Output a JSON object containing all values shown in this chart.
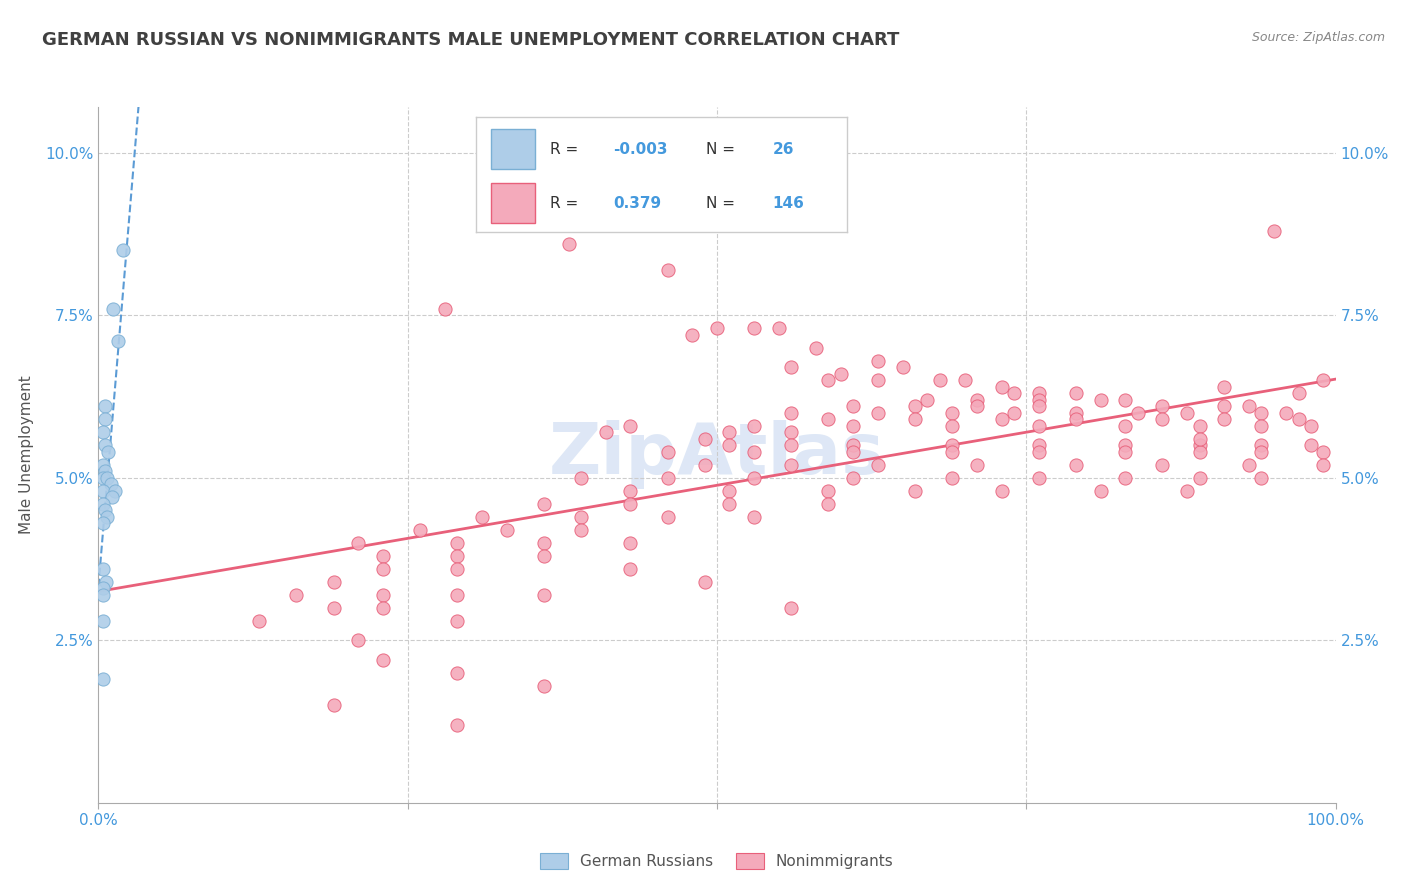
{
  "title": "GERMAN RUSSIAN VS NONIMMIGRANTS MALE UNEMPLOYMENT CORRELATION CHART",
  "source": "Source: ZipAtlas.com",
  "ylabel": "Male Unemployment",
  "xrange": [
    0.0,
    1.0
  ],
  "yrange": [
    0.0,
    0.107
  ],
  "blue_color": "#AECDE8",
  "pink_color": "#F4AABB",
  "blue_edge_color": "#7AAFD4",
  "pink_edge_color": "#E8607A",
  "blue_line_color": "#5B9BD5",
  "pink_line_color": "#E8607A",
  "grid_color": "#CCCCCC",
  "title_color": "#404040",
  "tick_label_color": "#4499DD",
  "watermark_color": "#C8D8F0",
  "background_color": "#FFFFFF",
  "legend_text_black": "#333333",
  "legend_text_blue": "#4499DD",
  "blue_scatter": [
    [
      0.02,
      0.085
    ],
    [
      0.012,
      0.076
    ],
    [
      0.016,
      0.071
    ],
    [
      0.005,
      0.061
    ],
    [
      0.005,
      0.059
    ],
    [
      0.004,
      0.057
    ],
    [
      0.005,
      0.055
    ],
    [
      0.008,
      0.054
    ],
    [
      0.004,
      0.052
    ],
    [
      0.005,
      0.051
    ],
    [
      0.004,
      0.05
    ],
    [
      0.007,
      0.05
    ],
    [
      0.01,
      0.049
    ],
    [
      0.004,
      0.048
    ],
    [
      0.013,
      0.048
    ],
    [
      0.011,
      0.047
    ],
    [
      0.004,
      0.046
    ],
    [
      0.005,
      0.045
    ],
    [
      0.007,
      0.044
    ],
    [
      0.004,
      0.043
    ],
    [
      0.004,
      0.036
    ],
    [
      0.006,
      0.034
    ],
    [
      0.004,
      0.033
    ],
    [
      0.004,
      0.032
    ],
    [
      0.004,
      0.028
    ],
    [
      0.004,
      0.019
    ]
  ],
  "pink_scatter": [
    [
      0.38,
      0.086
    ],
    [
      0.46,
      0.082
    ],
    [
      0.95,
      0.088
    ],
    [
      0.28,
      0.076
    ],
    [
      0.5,
      0.073
    ],
    [
      0.53,
      0.073
    ],
    [
      0.55,
      0.073
    ],
    [
      0.48,
      0.072
    ],
    [
      0.58,
      0.07
    ],
    [
      0.63,
      0.068
    ],
    [
      0.56,
      0.067
    ],
    [
      0.65,
      0.067
    ],
    [
      0.6,
      0.066
    ],
    [
      0.59,
      0.065
    ],
    [
      0.63,
      0.065
    ],
    [
      0.7,
      0.065
    ],
    [
      0.68,
      0.065
    ],
    [
      0.73,
      0.064
    ],
    [
      0.74,
      0.063
    ],
    [
      0.76,
      0.063
    ],
    [
      0.79,
      0.063
    ],
    [
      0.67,
      0.062
    ],
    [
      0.71,
      0.062
    ],
    [
      0.76,
      0.062
    ],
    [
      0.81,
      0.062
    ],
    [
      0.83,
      0.062
    ],
    [
      0.61,
      0.061
    ],
    [
      0.66,
      0.061
    ],
    [
      0.71,
      0.061
    ],
    [
      0.76,
      0.061
    ],
    [
      0.86,
      0.061
    ],
    [
      0.91,
      0.061
    ],
    [
      0.93,
      0.061
    ],
    [
      0.56,
      0.06
    ],
    [
      0.63,
      0.06
    ],
    [
      0.69,
      0.06
    ],
    [
      0.74,
      0.06
    ],
    [
      0.79,
      0.06
    ],
    [
      0.84,
      0.06
    ],
    [
      0.88,
      0.06
    ],
    [
      0.94,
      0.06
    ],
    [
      0.96,
      0.06
    ],
    [
      0.59,
      0.059
    ],
    [
      0.66,
      0.059
    ],
    [
      0.73,
      0.059
    ],
    [
      0.79,
      0.059
    ],
    [
      0.86,
      0.059
    ],
    [
      0.91,
      0.059
    ],
    [
      0.97,
      0.059
    ],
    [
      0.61,
      0.058
    ],
    [
      0.69,
      0.058
    ],
    [
      0.76,
      0.058
    ],
    [
      0.83,
      0.058
    ],
    [
      0.89,
      0.058
    ],
    [
      0.94,
      0.058
    ],
    [
      0.98,
      0.058
    ],
    [
      0.99,
      0.065
    ],
    [
      0.97,
      0.063
    ],
    [
      0.51,
      0.057
    ],
    [
      0.56,
      0.057
    ],
    [
      0.41,
      0.057
    ],
    [
      0.43,
      0.058
    ],
    [
      0.49,
      0.056
    ],
    [
      0.53,
      0.058
    ],
    [
      0.51,
      0.055
    ],
    [
      0.56,
      0.055
    ],
    [
      0.61,
      0.055
    ],
    [
      0.69,
      0.055
    ],
    [
      0.76,
      0.055
    ],
    [
      0.83,
      0.055
    ],
    [
      0.89,
      0.055
    ],
    [
      0.94,
      0.055
    ],
    [
      0.98,
      0.055
    ],
    [
      0.46,
      0.054
    ],
    [
      0.53,
      0.054
    ],
    [
      0.61,
      0.054
    ],
    [
      0.69,
      0.054
    ],
    [
      0.76,
      0.054
    ],
    [
      0.83,
      0.054
    ],
    [
      0.89,
      0.054
    ],
    [
      0.94,
      0.054
    ],
    [
      0.99,
      0.054
    ],
    [
      0.49,
      0.052
    ],
    [
      0.56,
      0.052
    ],
    [
      0.63,
      0.052
    ],
    [
      0.71,
      0.052
    ],
    [
      0.79,
      0.052
    ],
    [
      0.86,
      0.052
    ],
    [
      0.93,
      0.052
    ],
    [
      0.99,
      0.052
    ],
    [
      0.46,
      0.05
    ],
    [
      0.53,
      0.05
    ],
    [
      0.61,
      0.05
    ],
    [
      0.69,
      0.05
    ],
    [
      0.76,
      0.05
    ],
    [
      0.83,
      0.05
    ],
    [
      0.89,
      0.05
    ],
    [
      0.94,
      0.05
    ],
    [
      0.43,
      0.048
    ],
    [
      0.51,
      0.048
    ],
    [
      0.59,
      0.048
    ],
    [
      0.66,
      0.048
    ],
    [
      0.73,
      0.048
    ],
    [
      0.81,
      0.048
    ],
    [
      0.88,
      0.048
    ],
    [
      0.36,
      0.046
    ],
    [
      0.43,
      0.046
    ],
    [
      0.51,
      0.046
    ],
    [
      0.59,
      0.046
    ],
    [
      0.39,
      0.044
    ],
    [
      0.46,
      0.044
    ],
    [
      0.53,
      0.044
    ],
    [
      0.33,
      0.042
    ],
    [
      0.39,
      0.042
    ],
    [
      0.29,
      0.04
    ],
    [
      0.36,
      0.04
    ],
    [
      0.43,
      0.04
    ],
    [
      0.23,
      0.038
    ],
    [
      0.29,
      0.038
    ],
    [
      0.36,
      0.038
    ],
    [
      0.23,
      0.036
    ],
    [
      0.29,
      0.036
    ],
    [
      0.19,
      0.034
    ],
    [
      0.23,
      0.032
    ],
    [
      0.29,
      0.032
    ],
    [
      0.36,
      0.032
    ],
    [
      0.19,
      0.03
    ],
    [
      0.23,
      0.03
    ],
    [
      0.29,
      0.028
    ],
    [
      0.21,
      0.025
    ],
    [
      0.23,
      0.022
    ],
    [
      0.29,
      0.02
    ],
    [
      0.36,
      0.018
    ],
    [
      0.19,
      0.015
    ],
    [
      0.29,
      0.012
    ],
    [
      0.91,
      0.064
    ],
    [
      0.89,
      0.056
    ],
    [
      0.39,
      0.05
    ],
    [
      0.31,
      0.044
    ],
    [
      0.26,
      0.042
    ],
    [
      0.21,
      0.04
    ],
    [
      0.16,
      0.032
    ],
    [
      0.13,
      0.028
    ],
    [
      0.43,
      0.036
    ],
    [
      0.49,
      0.034
    ],
    [
      0.56,
      0.03
    ]
  ],
  "watermark": "ZipAtlas"
}
